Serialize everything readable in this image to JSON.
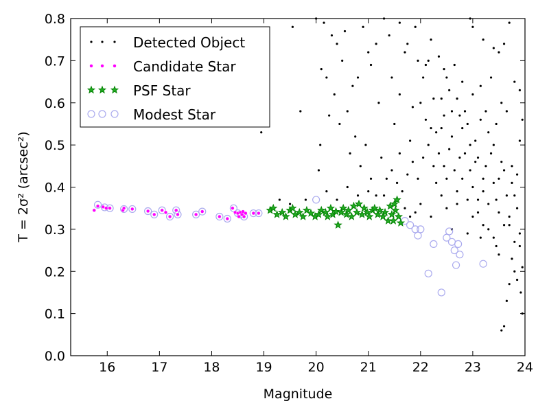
{
  "chart_data": {
    "type": "scatter",
    "title": "",
    "xlabel": "Magnitude",
    "ylabel": "T = 2σ² (arcsec²)",
    "xlim": [
      15.3,
      24
    ],
    "ylim": [
      0.0,
      0.8
    ],
    "xticks": [
      "16",
      "17",
      "18",
      "19",
      "20",
      "21",
      "22",
      "23",
      "24"
    ],
    "yticks": [
      "0.0",
      "0.1",
      "0.2",
      "0.3",
      "0.4",
      "0.5",
      "0.6",
      "0.7",
      "0.8"
    ],
    "grid": false,
    "legend_position": "top-left",
    "series": [
      {
        "name": "Detected Object",
        "marker": "dot",
        "color": "#000000",
        "points": [
          [
            18.95,
            0.53
          ],
          [
            19.55,
            0.78
          ],
          [
            20.0,
            0.8
          ],
          [
            20.05,
            0.44
          ],
          [
            20.08,
            0.5
          ],
          [
            20.15,
            0.79
          ],
          [
            20.2,
            0.66
          ],
          [
            20.3,
            0.76
          ],
          [
            20.4,
            0.74
          ],
          [
            20.5,
            0.7
          ],
          [
            20.55,
            0.77
          ],
          [
            20.6,
            0.58
          ],
          [
            20.7,
            0.64
          ],
          [
            20.8,
            0.66
          ],
          [
            20.9,
            0.78
          ],
          [
            21.0,
            0.72
          ],
          [
            21.05,
            0.69
          ],
          [
            21.15,
            0.74
          ],
          [
            21.3,
            0.8
          ],
          [
            21.4,
            0.76
          ],
          [
            21.45,
            0.66
          ],
          [
            21.6,
            0.79
          ],
          [
            21.7,
            0.72
          ],
          [
            21.75,
            0.74
          ],
          [
            21.85,
            0.59
          ],
          [
            21.9,
            0.78
          ],
          [
            21.95,
            0.7
          ],
          [
            22.0,
            0.6
          ],
          [
            22.05,
            0.66
          ],
          [
            22.1,
            0.69
          ],
          [
            22.15,
            0.7
          ],
          [
            22.2,
            0.75
          ],
          [
            22.25,
            0.61
          ],
          [
            22.3,
            0.53
          ],
          [
            22.35,
            0.71
          ],
          [
            22.4,
            0.54
          ],
          [
            22.45,
            0.68
          ],
          [
            22.5,
            0.66
          ],
          [
            22.55,
            0.63
          ],
          [
            22.6,
            0.58
          ],
          [
            22.65,
            0.69
          ],
          [
            22.7,
            0.61
          ],
          [
            22.75,
            0.57
          ],
          [
            22.8,
            0.65
          ],
          [
            22.85,
            0.48
          ],
          [
            22.9,
            0.55
          ],
          [
            22.95,
            0.44
          ],
          [
            23.0,
            0.62
          ],
          [
            23.05,
            0.51
          ],
          [
            23.1,
            0.47
          ],
          [
            23.15,
            0.64
          ],
          [
            23.2,
            0.42
          ],
          [
            23.25,
            0.45
          ],
          [
            23.3,
            0.53
          ],
          [
            23.35,
            0.66
          ],
          [
            23.4,
            0.5
          ],
          [
            23.45,
            0.37
          ],
          [
            23.5,
            0.42
          ],
          [
            23.55,
            0.46
          ],
          [
            23.6,
            0.31
          ],
          [
            23.65,
            0.38
          ],
          [
            23.7,
            0.33
          ],
          [
            23.75,
            0.45
          ],
          [
            23.8,
            0.27
          ],
          [
            23.85,
            0.35
          ],
          [
            23.9,
            0.29
          ],
          [
            23.95,
            0.21
          ],
          [
            23.92,
            0.15
          ],
          [
            23.6,
            0.07
          ],
          [
            23.55,
            0.06
          ],
          [
            23.7,
            0.17
          ],
          [
            23.8,
            0.2
          ],
          [
            23.5,
            0.24
          ],
          [
            23.4,
            0.28
          ],
          [
            22.9,
            0.29
          ],
          [
            22.6,
            0.3
          ],
          [
            22.2,
            0.33
          ],
          [
            21.9,
            0.34
          ],
          [
            22.0,
            0.36
          ],
          [
            21.7,
            0.35
          ],
          [
            21.8,
            0.33
          ],
          [
            22.4,
            0.38
          ],
          [
            22.3,
            0.41
          ],
          [
            22.5,
            0.35
          ],
          [
            22.7,
            0.39
          ],
          [
            22.8,
            0.42
          ],
          [
            23.0,
            0.33
          ],
          [
            23.1,
            0.37
          ],
          [
            23.2,
            0.31
          ],
          [
            23.3,
            0.3
          ],
          [
            23.0,
            0.78
          ],
          [
            23.2,
            0.75
          ],
          [
            22.95,
            0.8
          ],
          [
            23.4,
            0.73
          ],
          [
            23.5,
            0.72
          ],
          [
            23.6,
            0.74
          ],
          [
            23.7,
            0.79
          ],
          [
            23.8,
            0.65
          ],
          [
            23.9,
            0.63
          ],
          [
            23.95,
            0.56
          ],
          [
            23.9,
            0.51
          ],
          [
            23.85,
            0.43
          ],
          [
            23.75,
            0.41
          ],
          [
            23.65,
            0.58
          ],
          [
            23.55,
            0.6
          ],
          [
            23.45,
            0.55
          ],
          [
            23.35,
            0.48
          ],
          [
            23.25,
            0.58
          ],
          [
            23.15,
            0.56
          ],
          [
            23.05,
            0.46
          ],
          [
            22.95,
            0.5
          ],
          [
            22.85,
            0.58
          ],
          [
            22.75,
            0.47
          ],
          [
            22.65,
            0.44
          ],
          [
            22.55,
            0.49
          ],
          [
            22.45,
            0.45
          ],
          [
            22.35,
            0.48
          ],
          [
            22.25,
            0.45
          ],
          [
            22.15,
            0.5
          ],
          [
            22.05,
            0.47
          ],
          [
            21.95,
            0.42
          ],
          [
            21.85,
            0.46
          ],
          [
            21.75,
            0.43
          ],
          [
            21.65,
            0.39
          ],
          [
            21.55,
            0.41
          ],
          [
            21.45,
            0.44
          ],
          [
            21.35,
            0.42
          ],
          [
            21.25,
            0.47
          ],
          [
            21.15,
            0.38
          ],
          [
            21.05,
            0.42
          ],
          [
            20.95,
            0.5
          ],
          [
            20.85,
            0.45
          ],
          [
            20.75,
            0.52
          ],
          [
            20.65,
            0.48
          ],
          [
            20.45,
            0.55
          ],
          [
            20.35,
            0.62
          ],
          [
            20.25,
            0.57
          ],
          [
            21.2,
            0.6
          ],
          [
            21.5,
            0.55
          ],
          [
            21.6,
            0.62
          ],
          [
            21.8,
            0.51
          ],
          [
            22.1,
            0.56
          ],
          [
            22.4,
            0.61
          ],
          [
            22.6,
            0.52
          ],
          [
            22.8,
            0.54
          ],
          [
            23.0,
            0.4
          ],
          [
            23.2,
            0.39
          ],
          [
            23.4,
            0.41
          ],
          [
            23.6,
            0.44
          ],
          [
            23.8,
            0.38
          ],
          [
            22.5,
            0.42
          ],
          [
            22.7,
            0.36
          ],
          [
            22.9,
            0.37
          ],
          [
            23.1,
            0.34
          ],
          [
            23.3,
            0.36
          ],
          [
            23.5,
            0.34
          ],
          [
            23.7,
            0.31
          ],
          [
            23.9,
            0.26
          ],
          [
            21.3,
            0.38
          ],
          [
            21.5,
            0.36
          ],
          [
            21.0,
            0.39
          ],
          [
            20.8,
            0.38
          ],
          [
            20.6,
            0.4
          ],
          [
            20.4,
            0.37
          ],
          [
            20.2,
            0.39
          ],
          [
            19.8,
            0.37
          ],
          [
            19.5,
            0.36
          ],
          [
            19.3,
            0.37
          ],
          [
            18.75,
            0.62
          ],
          [
            19.7,
            0.58
          ],
          [
            20.1,
            0.68
          ],
          [
            21.6,
            0.48
          ],
          [
            22.2,
            0.54
          ],
          [
            22.45,
            0.57
          ],
          [
            23.15,
            0.28
          ],
          [
            23.45,
            0.26
          ],
          [
            23.75,
            0.23
          ],
          [
            23.85,
            0.18
          ],
          [
            23.65,
            0.13
          ],
          [
            23.95,
            0.1
          ]
        ]
      },
      {
        "name": "Candidate Star",
        "marker": "circle-small",
        "color": "#ff00ff",
        "points": [
          [
            15.75,
            0.345
          ],
          [
            15.82,
            0.355
          ],
          [
            15.92,
            0.353
          ],
          [
            15.98,
            0.35
          ],
          [
            16.05,
            0.35
          ],
          [
            16.3,
            0.345
          ],
          [
            16.32,
            0.35
          ],
          [
            16.48,
            0.348
          ],
          [
            16.78,
            0.343
          ],
          [
            16.9,
            0.335
          ],
          [
            17.05,
            0.345
          ],
          [
            17.12,
            0.34
          ],
          [
            17.2,
            0.33
          ],
          [
            17.32,
            0.345
          ],
          [
            17.35,
            0.335
          ],
          [
            17.7,
            0.335
          ],
          [
            17.82,
            0.342
          ],
          [
            18.15,
            0.33
          ],
          [
            18.3,
            0.325
          ],
          [
            18.4,
            0.35
          ],
          [
            18.45,
            0.34
          ],
          [
            18.5,
            0.338
          ],
          [
            18.52,
            0.33
          ],
          [
            18.55,
            0.34
          ],
          [
            18.58,
            0.335
          ],
          [
            18.6,
            0.342
          ],
          [
            18.62,
            0.33
          ],
          [
            18.65,
            0.338
          ],
          [
            18.8,
            0.338
          ],
          [
            18.9,
            0.338
          ]
        ]
      },
      {
        "name": "PSF Star",
        "marker": "star",
        "color": "#008000",
        "points": [
          [
            19.12,
            0.345
          ],
          [
            19.18,
            0.35
          ],
          [
            19.25,
            0.335
          ],
          [
            19.35,
            0.34
          ],
          [
            19.42,
            0.33
          ],
          [
            19.5,
            0.345
          ],
          [
            19.55,
            0.35
          ],
          [
            19.6,
            0.335
          ],
          [
            19.68,
            0.34
          ],
          [
            19.75,
            0.33
          ],
          [
            19.82,
            0.345
          ],
          [
            19.9,
            0.338
          ],
          [
            19.98,
            0.33
          ],
          [
            20.05,
            0.335
          ],
          [
            20.1,
            0.345
          ],
          [
            20.18,
            0.34
          ],
          [
            20.22,
            0.33
          ],
          [
            20.28,
            0.35
          ],
          [
            20.32,
            0.335
          ],
          [
            20.38,
            0.342
          ],
          [
            20.42,
            0.31
          ],
          [
            20.48,
            0.34
          ],
          [
            20.52,
            0.35
          ],
          [
            20.58,
            0.335
          ],
          [
            20.62,
            0.345
          ],
          [
            20.68,
            0.33
          ],
          [
            20.72,
            0.355
          ],
          [
            20.78,
            0.34
          ],
          [
            20.82,
            0.36
          ],
          [
            20.88,
            0.335
          ],
          [
            20.92,
            0.35
          ],
          [
            20.98,
            0.34
          ],
          [
            21.02,
            0.33
          ],
          [
            21.08,
            0.345
          ],
          [
            21.12,
            0.35
          ],
          [
            21.18,
            0.335
          ],
          [
            21.22,
            0.345
          ],
          [
            21.28,
            0.33
          ],
          [
            21.32,
            0.34
          ],
          [
            21.38,
            0.32
          ],
          [
            21.42,
            0.355
          ],
          [
            21.45,
            0.335
          ],
          [
            21.48,
            0.32
          ],
          [
            21.52,
            0.345
          ],
          [
            21.55,
            0.37
          ],
          [
            21.58,
            0.33
          ],
          [
            21.62,
            0.315
          ],
          [
            21.5,
            0.36
          ]
        ]
      },
      {
        "name": "Modest Star",
        "marker": "open-circle",
        "color": "#aaaaee",
        "points": [
          [
            15.82,
            0.358
          ],
          [
            15.95,
            0.352
          ],
          [
            16.05,
            0.35
          ],
          [
            16.32,
            0.348
          ],
          [
            16.48,
            0.348
          ],
          [
            16.78,
            0.343
          ],
          [
            16.9,
            0.335
          ],
          [
            17.05,
            0.345
          ],
          [
            17.2,
            0.33
          ],
          [
            17.32,
            0.345
          ],
          [
            17.35,
            0.335
          ],
          [
            17.7,
            0.335
          ],
          [
            17.82,
            0.342
          ],
          [
            18.15,
            0.33
          ],
          [
            18.3,
            0.325
          ],
          [
            18.42,
            0.35
          ],
          [
            18.5,
            0.338
          ],
          [
            18.55,
            0.335
          ],
          [
            18.62,
            0.33
          ],
          [
            18.8,
            0.338
          ],
          [
            18.9,
            0.338
          ],
          [
            20.0,
            0.37
          ],
          [
            21.7,
            0.32
          ],
          [
            21.8,
            0.31
          ],
          [
            21.9,
            0.3
          ],
          [
            21.95,
            0.285
          ],
          [
            22.0,
            0.3
          ],
          [
            22.15,
            0.195
          ],
          [
            22.25,
            0.265
          ],
          [
            22.4,
            0.15
          ],
          [
            22.5,
            0.28
          ],
          [
            22.55,
            0.295
          ],
          [
            22.6,
            0.27
          ],
          [
            22.65,
            0.25
          ],
          [
            22.68,
            0.215
          ],
          [
            22.72,
            0.265
          ],
          [
            22.75,
            0.24
          ],
          [
            23.2,
            0.218
          ]
        ]
      }
    ]
  }
}
